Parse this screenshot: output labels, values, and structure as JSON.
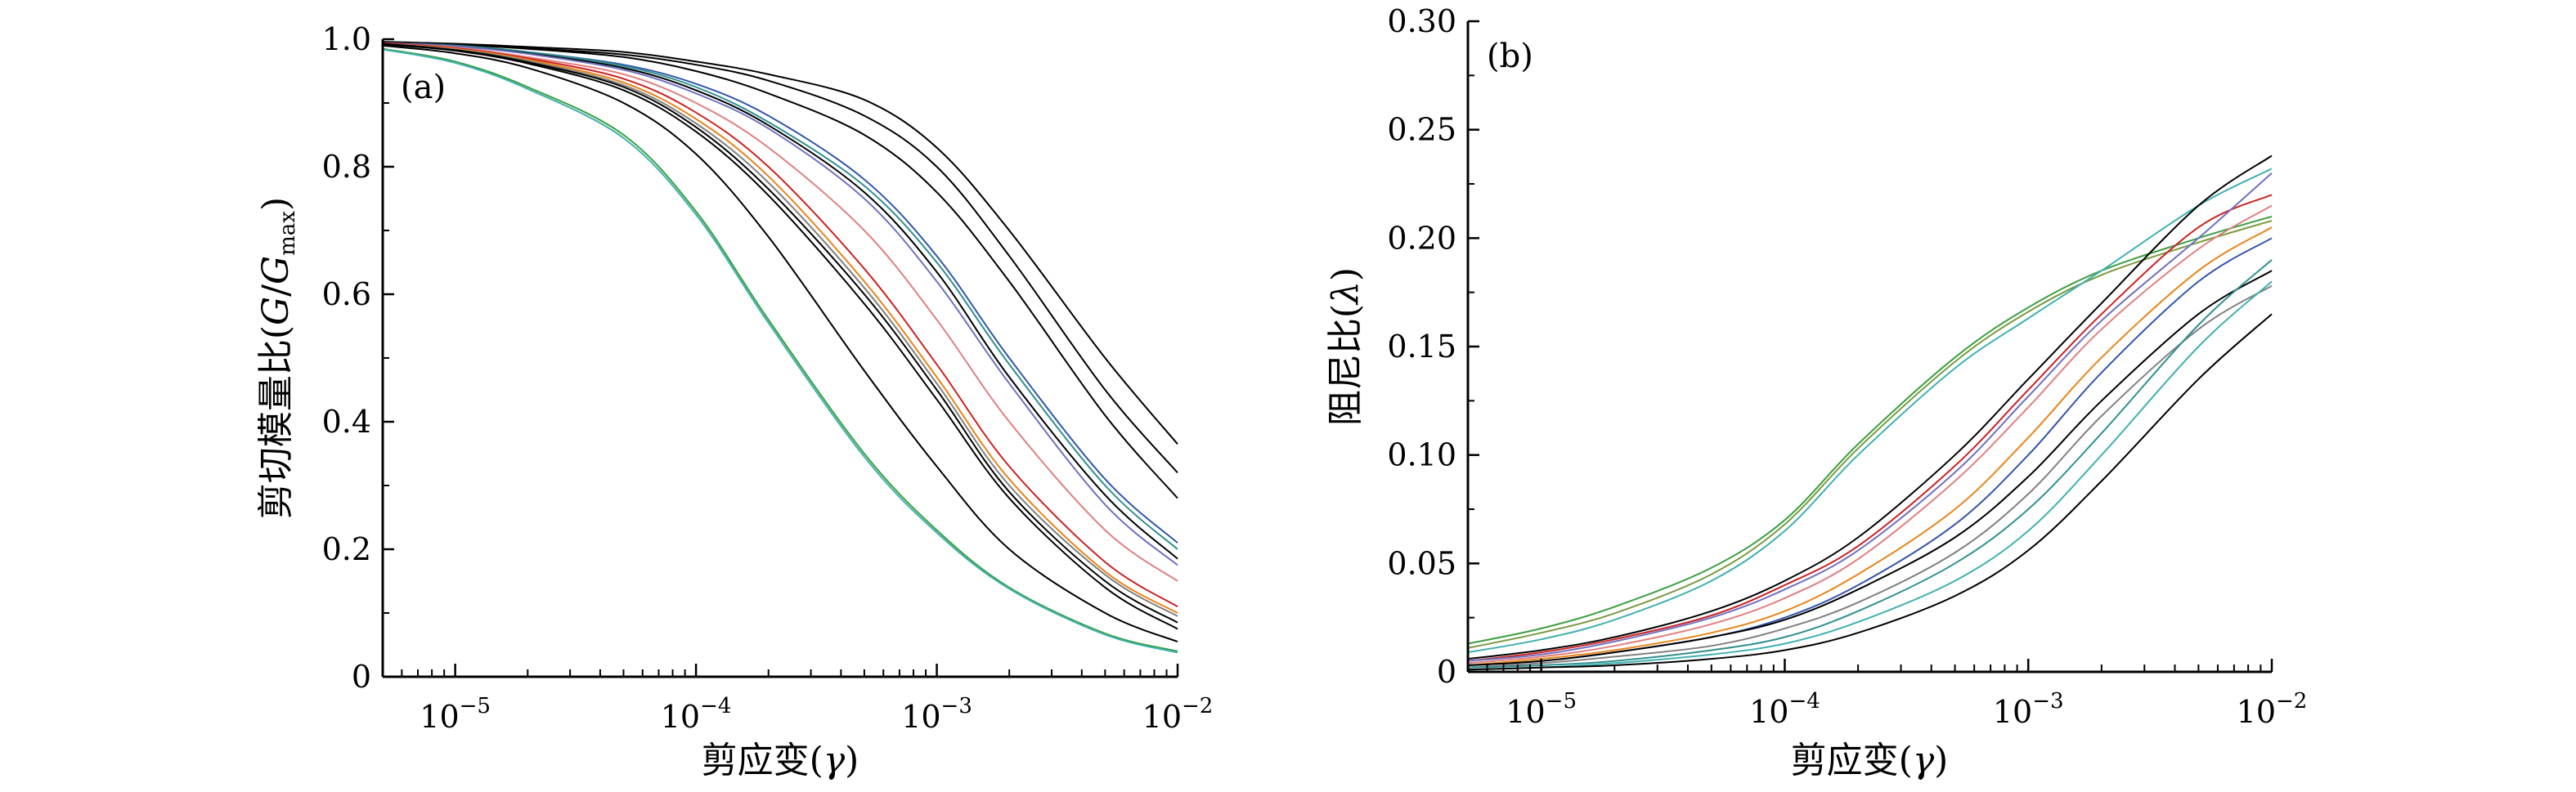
{
  "chart_data": [
    {
      "type": "line",
      "panel_label": "(a)",
      "ylabel": "剪切模量比(G/Gmax)",
      "ylabel_parts": {
        "prefix": "剪切模量比(",
        "g": "G",
        "slash": "/",
        "gmax": "G",
        "sub": "max",
        "suffix": ")"
      },
      "xlabel": "剪应变(γ)",
      "xlabel_parts": {
        "prefix": "剪应变(",
        "sym": "γ",
        "suffix": ")"
      },
      "x_scale": "log",
      "xlim": [
        5e-06,
        0.01
      ],
      "ylim": [
        0,
        1.0
      ],
      "x_ticks": [
        {
          "value": 1e-05,
          "base": "10",
          "exp": "−5"
        },
        {
          "value": 0.0001,
          "base": "10",
          "exp": "−4"
        },
        {
          "value": 0.001,
          "base": "10",
          "exp": "−3"
        },
        {
          "value": 0.01,
          "base": "10",
          "exp": "−2"
        }
      ],
      "y_ticks": [
        {
          "value": 0,
          "label": "0"
        },
        {
          "value": 0.2,
          "label": "0.2"
        },
        {
          "value": 0.4,
          "label": "0.4"
        },
        {
          "value": 0.6,
          "label": "0.6"
        },
        {
          "value": 0.8,
          "label": "0.8"
        },
        {
          "value": 1.0,
          "label": "1.0"
        }
      ],
      "grid": false,
      "legend": "none",
      "x": [
        5e-06,
        1e-05,
        2e-05,
        5e-05,
        0.0001,
        0.0002,
        0.0005,
        0.001,
        0.002,
        0.005,
        0.01
      ],
      "series": [
        {
          "color": "#000000",
          "values": [
            0.996,
            0.993,
            0.988,
            0.98,
            0.965,
            0.945,
            0.905,
            0.83,
            0.7,
            0.5,
            0.365
          ]
        },
        {
          "color": "#000000",
          "values": [
            0.995,
            0.992,
            0.986,
            0.976,
            0.96,
            0.935,
            0.88,
            0.8,
            0.66,
            0.45,
            0.32
          ]
        },
        {
          "color": "#000000",
          "values": [
            0.995,
            0.991,
            0.985,
            0.972,
            0.95,
            0.915,
            0.85,
            0.76,
            0.62,
            0.41,
            0.28
          ]
        },
        {
          "color": "#3355aa",
          "values": [
            0.995,
            0.99,
            0.98,
            0.96,
            0.93,
            0.88,
            0.78,
            0.66,
            0.5,
            0.31,
            0.21
          ]
        },
        {
          "color": "#2f8f8f",
          "values": [
            0.995,
            0.99,
            0.98,
            0.958,
            0.925,
            0.87,
            0.77,
            0.65,
            0.49,
            0.3,
            0.2
          ]
        },
        {
          "color": "#000000",
          "values": [
            0.995,
            0.989,
            0.978,
            0.955,
            0.92,
            0.865,
            0.76,
            0.635,
            0.47,
            0.285,
            0.185
          ]
        },
        {
          "color": "#7070c0",
          "values": [
            0.994,
            0.989,
            0.977,
            0.952,
            0.915,
            0.86,
            0.75,
            0.62,
            0.46,
            0.27,
            0.175
          ]
        },
        {
          "color": "#e08080",
          "values": [
            0.994,
            0.987,
            0.972,
            0.945,
            0.9,
            0.83,
            0.7,
            0.56,
            0.4,
            0.23,
            0.15
          ]
        },
        {
          "color": "#cc2222",
          "values": [
            0.994,
            0.986,
            0.97,
            0.938,
            0.885,
            0.8,
            0.64,
            0.49,
            0.33,
            0.18,
            0.11
          ]
        },
        {
          "color": "#e8841a",
          "values": [
            0.993,
            0.985,
            0.968,
            0.932,
            0.875,
            0.785,
            0.62,
            0.47,
            0.31,
            0.165,
            0.1
          ]
        },
        {
          "color": "#808080",
          "values": [
            0.993,
            0.984,
            0.966,
            0.928,
            0.868,
            0.775,
            0.61,
            0.46,
            0.3,
            0.16,
            0.095
          ]
        },
        {
          "color": "#000000",
          "values": [
            0.993,
            0.983,
            0.964,
            0.925,
            0.862,
            0.765,
            0.6,
            0.45,
            0.29,
            0.15,
            0.085
          ]
        },
        {
          "color": "#000000",
          "values": [
            0.992,
            0.982,
            0.962,
            0.92,
            0.855,
            0.755,
            0.585,
            0.435,
            0.28,
            0.14,
            0.075
          ]
        },
        {
          "color": "#000000",
          "values": [
            0.99,
            0.978,
            0.955,
            0.9,
            0.82,
            0.69,
            0.48,
            0.33,
            0.2,
            0.1,
            0.055
          ]
        },
        {
          "color": "#3aa040",
          "values": [
            0.985,
            0.965,
            0.925,
            0.85,
            0.73,
            0.56,
            0.35,
            0.23,
            0.14,
            0.068,
            0.04
          ]
        },
        {
          "color": "#40b0b0",
          "values": [
            0.984,
            0.963,
            0.922,
            0.845,
            0.725,
            0.555,
            0.345,
            0.226,
            0.138,
            0.066,
            0.038
          ]
        }
      ]
    },
    {
      "type": "line",
      "panel_label": "(b)",
      "ylabel": "阻尼比(λ)",
      "ylabel_parts": {
        "prefix": "阻尼比(",
        "sym": "λ",
        "suffix": ")"
      },
      "xlabel": "剪应变(γ)",
      "xlabel_parts": {
        "prefix": "剪应变(",
        "sym": "γ",
        "suffix": ")"
      },
      "x_scale": "log",
      "xlim": [
        5e-06,
        0.01
      ],
      "ylim": [
        0,
        0.3
      ],
      "x_ticks": [
        {
          "value": 1e-05,
          "base": "10",
          "exp": "−5"
        },
        {
          "value": 0.0001,
          "base": "10",
          "exp": "−4"
        },
        {
          "value": 0.001,
          "base": "10",
          "exp": "−3"
        },
        {
          "value": 0.01,
          "base": "10",
          "exp": "−2"
        }
      ],
      "y_ticks": [
        {
          "value": 0,
          "label": "0"
        },
        {
          "value": 0.05,
          "label": "0.05"
        },
        {
          "value": 0.1,
          "label": "0.10"
        },
        {
          "value": 0.15,
          "label": "0.15"
        },
        {
          "value": 0.2,
          "label": "0.20"
        },
        {
          "value": 0.25,
          "label": "0.25"
        },
        {
          "value": 0.3,
          "label": "0.30"
        }
      ],
      "grid": false,
      "legend": "none",
      "x": [
        5e-06,
        1e-05,
        2e-05,
        5e-05,
        0.0001,
        0.0002,
        0.0005,
        0.001,
        0.002,
        0.005,
        0.01
      ],
      "series": [
        {
          "color": "#3aa040",
          "values": [
            0.013,
            0.02,
            0.03,
            0.048,
            0.07,
            0.105,
            0.145,
            0.168,
            0.185,
            0.2,
            0.21
          ]
        },
        {
          "color": "#7a9a40",
          "values": [
            0.011,
            0.018,
            0.027,
            0.045,
            0.068,
            0.103,
            0.143,
            0.166,
            0.183,
            0.198,
            0.208
          ]
        },
        {
          "color": "#40b0b0",
          "values": [
            0.009,
            0.015,
            0.024,
            0.042,
            0.065,
            0.1,
            0.14,
            0.163,
            0.185,
            0.215,
            0.232
          ]
        },
        {
          "color": "#000000",
          "values": [
            0.006,
            0.01,
            0.016,
            0.028,
            0.042,
            0.062,
            0.1,
            0.135,
            0.17,
            0.215,
            0.238
          ]
        },
        {
          "color": "#cc2222",
          "values": [
            0.005,
            0.009,
            0.015,
            0.026,
            0.04,
            0.058,
            0.095,
            0.13,
            0.165,
            0.205,
            0.22
          ]
        },
        {
          "color": "#7070c0",
          "values": [
            0.005,
            0.008,
            0.014,
            0.025,
            0.038,
            0.056,
            0.092,
            0.127,
            0.162,
            0.2,
            0.23
          ]
        },
        {
          "color": "#e08080",
          "values": [
            0.004,
            0.007,
            0.012,
            0.022,
            0.034,
            0.052,
            0.088,
            0.122,
            0.158,
            0.195,
            0.215
          ]
        },
        {
          "color": "#e8841a",
          "values": [
            0.003,
            0.006,
            0.01,
            0.018,
            0.028,
            0.045,
            0.075,
            0.108,
            0.145,
            0.185,
            0.205
          ]
        },
        {
          "color": "#3355aa",
          "values": [
            0.003,
            0.005,
            0.009,
            0.016,
            0.025,
            0.04,
            0.068,
            0.1,
            0.138,
            0.18,
            0.2
          ]
        },
        {
          "color": "#000000",
          "values": [
            0.003,
            0.005,
            0.009,
            0.016,
            0.024,
            0.038,
            0.062,
            0.09,
            0.125,
            0.165,
            0.185
          ]
        },
        {
          "color": "#808080",
          "values": [
            0.002,
            0.004,
            0.007,
            0.012,
            0.02,
            0.032,
            0.055,
            0.082,
            0.118,
            0.158,
            0.178
          ]
        },
        {
          "color": "#2f8f8f",
          "values": [
            0.002,
            0.003,
            0.005,
            0.01,
            0.016,
            0.028,
            0.05,
            0.075,
            0.11,
            0.16,
            0.19
          ]
        },
        {
          "color": "#40b0b0",
          "values": [
            0.001,
            0.002,
            0.004,
            0.008,
            0.013,
            0.023,
            0.042,
            0.065,
            0.1,
            0.15,
            0.18
          ]
        },
        {
          "color": "#000000",
          "values": [
            0.001,
            0.002,
            0.003,
            0.006,
            0.01,
            0.018,
            0.035,
            0.056,
            0.088,
            0.135,
            0.165
          ]
        }
      ]
    }
  ]
}
